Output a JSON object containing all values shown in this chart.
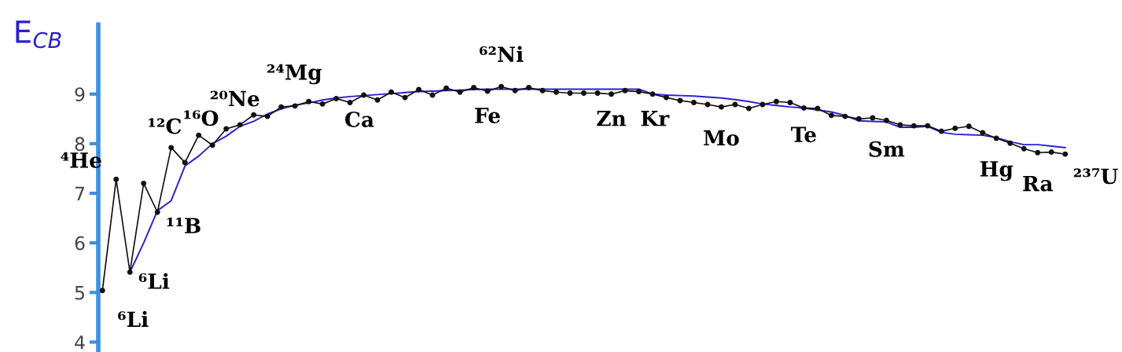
{
  "chart_data": {
    "type": "line",
    "ylabel": "E$_{CB}$",
    "categories": [
      null,
      null,
      null,
      null,
      null,
      null,
      null,
      null,
      null,
      null,
      null,
      null,
      null,
      null,
      null,
      null,
      null,
      null,
      null,
      null,
      null,
      null,
      null,
      null,
      null,
      null,
      null,
      null,
      null,
      null,
      null,
      null,
      null,
      null,
      null,
      null,
      null,
      null,
      null,
      null,
      null,
      null,
      null,
      null,
      null,
      null,
      null,
      null,
      null,
      null,
      null,
      null,
      null,
      null,
      null,
      null,
      null,
      null,
      null,
      null,
      null,
      null,
      null,
      null,
      null,
      null,
      null,
      null,
      null,
      null,
      null
    ],
    "series": [
      {
        "color": "#111111",
        "marker": "circle",
        "values": [
          5.04,
          7.28,
          5.41,
          7.2,
          6.62,
          7.92,
          7.62,
          8.17,
          7.97,
          8.3,
          8.38,
          8.58,
          8.55,
          8.74,
          8.76,
          8.85,
          8.8,
          8.91,
          8.83,
          8.98,
          8.88,
          9.04,
          8.93,
          9.09,
          8.98,
          9.12,
          9.04,
          9.13,
          9.06,
          9.15,
          9.07,
          9.13,
          9.07,
          9.04,
          9.02,
          9.02,
          9.02,
          9.0,
          9.07,
          9.05,
          9.0,
          8.93,
          8.87,
          8.83,
          8.79,
          8.74,
          8.79,
          8.71,
          8.79,
          8.85,
          8.83,
          8.72,
          8.71,
          8.57,
          8.55,
          8.5,
          8.52,
          8.47,
          8.38,
          8.36,
          8.36,
          8.25,
          8.31,
          8.35,
          8.22,
          8.11,
          8.01,
          7.9,
          7.82,
          7.83,
          7.79
        ]
      },
      {
        "color": "#2a1fd0",
        "marker": "none",
        "values": [
          null,
          null,
          5.41,
          6.0,
          6.65,
          6.85,
          7.55,
          7.75,
          8.0,
          8.15,
          8.35,
          8.45,
          8.6,
          8.7,
          8.78,
          8.82,
          8.88,
          8.92,
          8.95,
          8.97,
          8.99,
          9.01,
          9.03,
          9.05,
          9.06,
          9.07,
          9.08,
          9.09,
          9.1,
          9.1,
          9.1,
          9.1,
          9.1,
          9.1,
          9.1,
          9.1,
          9.1,
          9.1,
          9.1,
          9.1,
          9.0,
          8.98,
          8.97,
          8.96,
          8.94,
          8.92,
          8.89,
          8.85,
          8.8,
          8.77,
          8.74,
          8.72,
          8.68,
          8.64,
          8.57,
          8.46,
          8.45,
          8.44,
          8.33,
          8.33,
          8.35,
          8.23,
          8.19,
          8.18,
          8.17,
          8.12,
          8.04,
          7.98,
          7.98,
          7.95,
          7.92
        ]
      }
    ],
    "ylim": [
      3.8,
      10.4
    ],
    "yticks": [
      4,
      5,
      6,
      7,
      8,
      9
    ],
    "line_style": "solid",
    "annotations": [
      "⁴He",
      "⁶Li",
      "⁶Li",
      "¹¹B",
      "¹²C",
      "¹⁶O",
      "²⁰Ne",
      "²⁴Mg",
      "⁶²Ni",
      "Ca",
      "Fe",
      "Zn",
      "Kr",
      "Mo",
      "Te",
      "Sm",
      "Hg",
      "Ra",
      "²³⁷U"
    ]
  }
}
